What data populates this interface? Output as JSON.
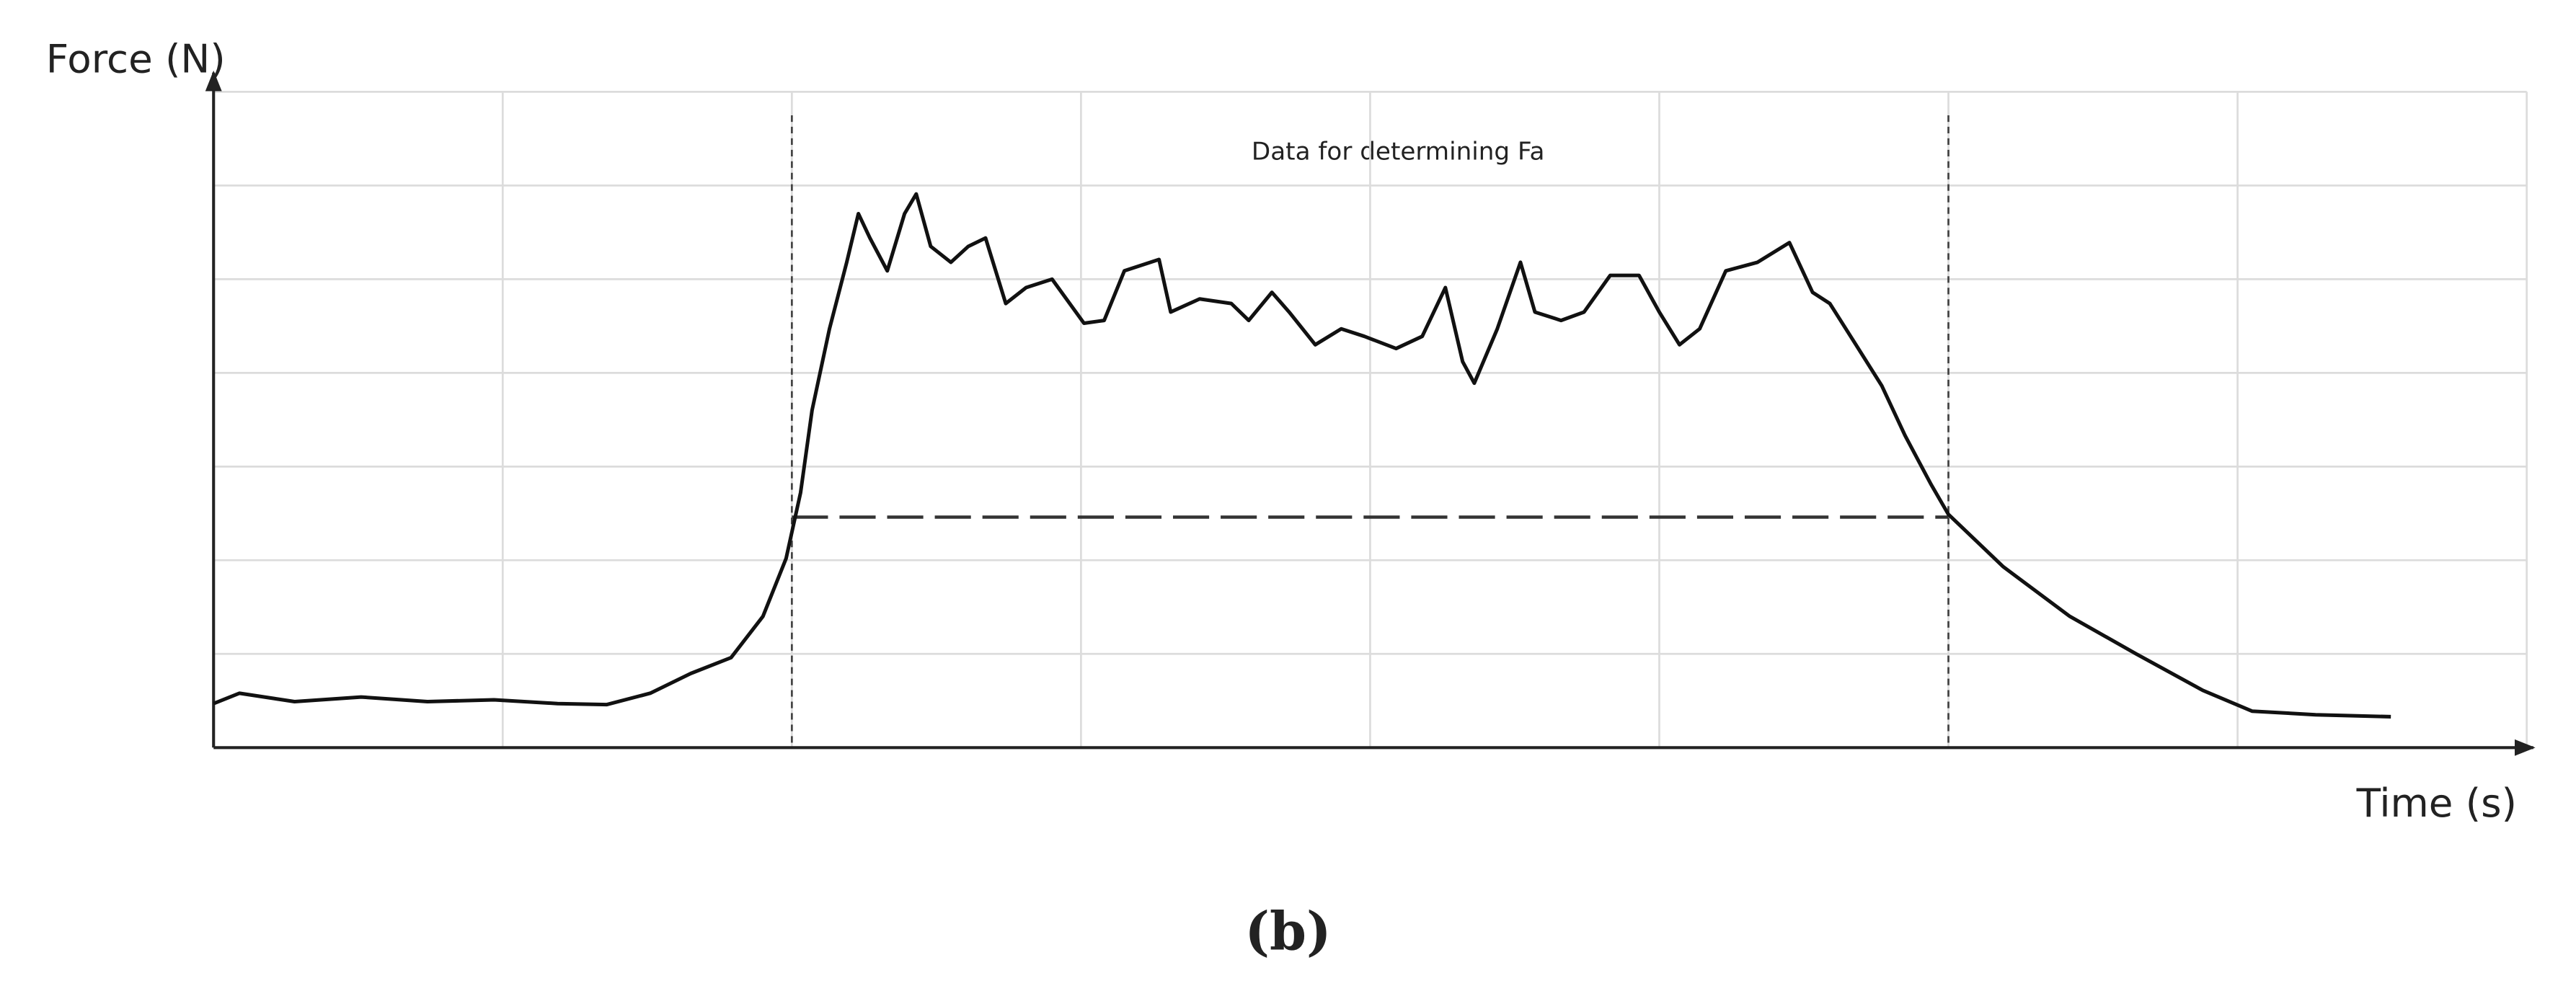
{
  "chart_data": {
    "type": "line",
    "y_label": "Force (N)",
    "x_label": "Time (s)",
    "annotation": "Data for determining Fa",
    "caption": "(b)",
    "xlim": [
      0,
      8
    ],
    "ylim": [
      0,
      7.1
    ],
    "xgrid": [
      1,
      2,
      3,
      4,
      5,
      6,
      7,
      8
    ],
    "ygrid": [
      1,
      2,
      3,
      4,
      5,
      6,
      7
    ],
    "color": "#111111",
    "x": [
      0,
      0.09,
      0.28,
      0.51,
      0.74,
      0.97,
      1.19,
      1.36,
      1.51,
      1.65,
      1.79,
      1.9,
      1.98,
      2.03,
      2.07,
      2.13,
      2.19,
      2.23,
      2.27,
      2.33,
      2.39,
      2.43,
      2.48,
      2.55,
      2.61,
      2.67,
      2.74,
      2.81,
      2.9,
      3.01,
      3.08,
      3.15,
      3.27,
      3.31,
      3.41,
      3.52,
      3.58,
      3.66,
      3.72,
      3.81,
      3.9,
      3.98,
      4.09,
      4.18,
      4.26,
      4.32,
      4.36,
      4.44,
      4.52,
      4.57,
      4.66,
      4.74,
      4.83,
      4.93,
      5.0,
      5.07,
      5.14,
      5.23,
      5.34,
      5.45,
      5.53,
      5.59,
      5.68,
      5.77,
      5.85,
      5.94,
      6.0,
      6.19,
      6.42,
      6.65,
      6.88,
      7.05,
      7.27,
      7.53
    ],
    "values": [
      0.47,
      0.58,
      0.49,
      0.54,
      0.49,
      0.51,
      0.47,
      0.46,
      0.58,
      0.79,
      0.96,
      1.4,
      2.02,
      2.72,
      3.6,
      4.47,
      5.18,
      5.7,
      5.44,
      5.09,
      5.7,
      5.91,
      5.35,
      5.18,
      5.35,
      5.44,
      4.74,
      4.91,
      5.0,
      4.53,
      4.56,
      5.09,
      5.21,
      4.65,
      4.79,
      4.74,
      4.56,
      4.86,
      4.65,
      4.3,
      4.47,
      4.39,
      4.26,
      4.39,
      4.91,
      4.12,
      3.89,
      4.47,
      5.18,
      4.65,
      4.56,
      4.65,
      5.04,
      5.04,
      4.65,
      4.3,
      4.47,
      5.09,
      5.18,
      5.39,
      4.86,
      4.74,
      4.3,
      3.86,
      3.33,
      2.81,
      2.49,
      1.93,
      1.4,
      1.0,
      0.61,
      0.39,
      0.35,
      0.33
    ],
    "vlines": [
      2,
      6
    ],
    "hline": {
      "y": 2.46,
      "x": [
        2,
        6
      ]
    }
  }
}
